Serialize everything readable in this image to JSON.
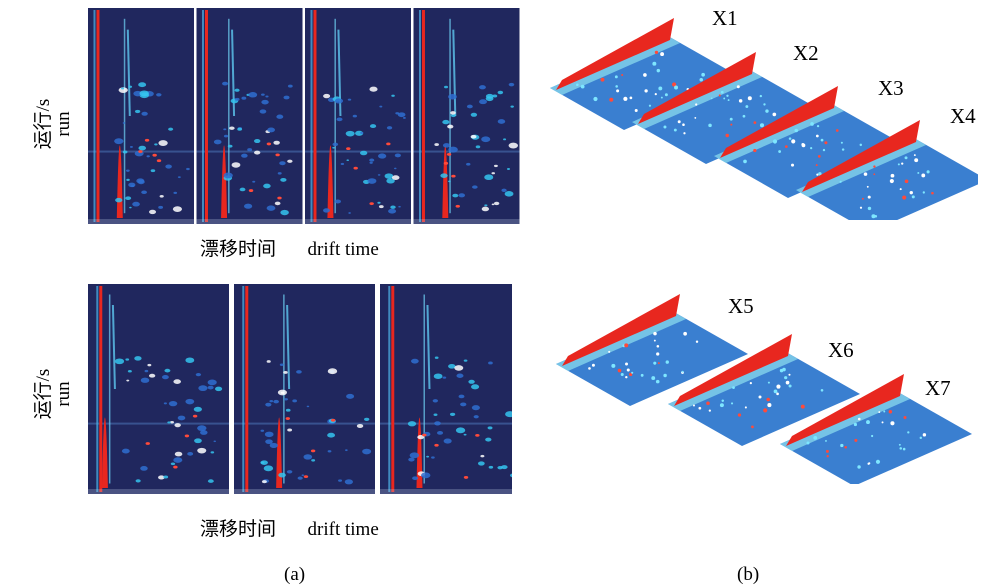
{
  "panel_a": {
    "y_label_cn": "运行/s",
    "y_label_en": "run",
    "x_label_cn": "漂移时间",
    "x_label_en": "drift time",
    "caption": "(a)"
  },
  "panel_b": {
    "caption": "(b)",
    "samples": [
      "X1",
      "X2",
      "X3",
      "X4",
      "X5",
      "X6",
      "X7"
    ]
  },
  "colors": {
    "background": "#20275e",
    "reaction_ion_peak": "#e8271f",
    "signal": "#35c4ee",
    "plane": "#3a7fd0"
  }
}
